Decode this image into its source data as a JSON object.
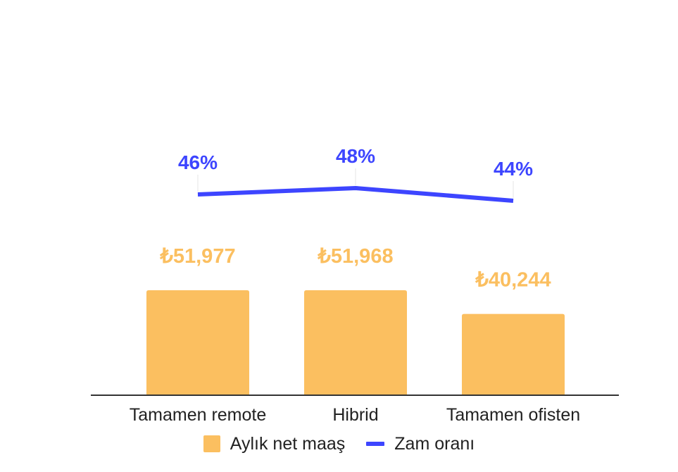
{
  "chart_data": {
    "type": "bar",
    "categories": [
      "Tamamen remote",
      "Hibrid",
      "Tamamen ofisten"
    ],
    "series": [
      {
        "name": "Aylık net maaş",
        "type": "bar",
        "values": [
          51977,
          51968,
          40244
        ],
        "labels": [
          "₺51,977",
          "₺51,968",
          "₺40,244"
        ],
        "color": "#FBBF60"
      },
      {
        "name": "Zam oranı",
        "type": "line",
        "values": [
          46,
          48,
          44
        ],
        "labels": [
          "46%",
          "48%",
          "44%"
        ],
        "color": "#3D45FF"
      }
    ],
    "grid": false,
    "legend_position": "bottom"
  }
}
